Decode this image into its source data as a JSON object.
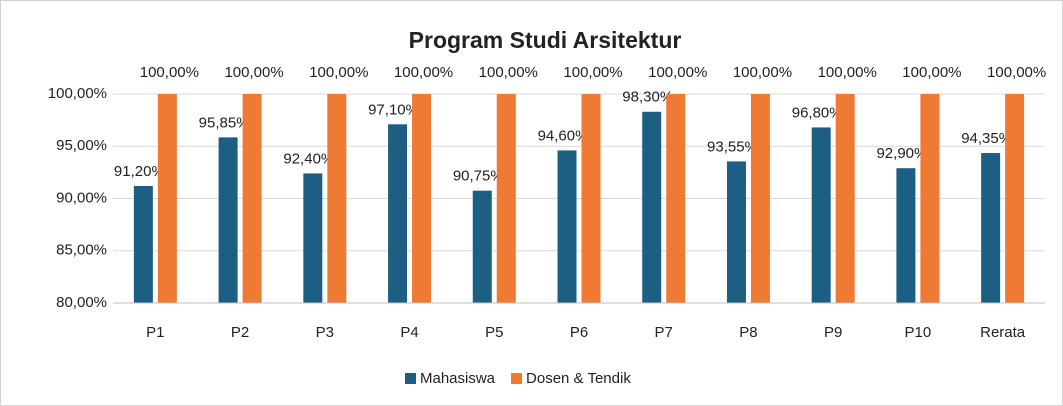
{
  "chart_data": {
    "type": "bar",
    "title": "Program Studi Arsitektur",
    "categories": [
      "P1",
      "P2",
      "P3",
      "P4",
      "P5",
      "P6",
      "P7",
      "P8",
      "P9",
      "P10",
      "Rerata"
    ],
    "series": [
      {
        "name": "Mahasiswa",
        "color": "#1c5f82",
        "values": [
          91.2,
          95.85,
          92.4,
          97.1,
          90.75,
          94.6,
          98.3,
          93.55,
          96.8,
          92.9,
          94.35
        ],
        "value_labels": [
          "91,20%",
          "95,85%",
          "92,40%",
          "97,10%",
          "90,75%",
          "94,60%",
          "98,30%",
          "93,55%",
          "96,80%",
          "92,90%",
          "94,35%"
        ]
      },
      {
        "name": "Dosen & Tendik",
        "color": "#ee7a34",
        "values": [
          100,
          100,
          100,
          100,
          100,
          100,
          100,
          100,
          100,
          100,
          100
        ],
        "value_labels": [
          "100,00%",
          "100,00%",
          "100,00%",
          "100,00%",
          "100,00%",
          "100,00%",
          "100,00%",
          "100,00%",
          "100,00%",
          "100,00%",
          "100,00%"
        ]
      }
    ],
    "ylim": [
      80,
      100
    ],
    "yticks": [
      {
        "value": 80,
        "label": "80,00%"
      },
      {
        "value": 85,
        "label": "85,00%"
      },
      {
        "value": 90,
        "label": "90,00%"
      },
      {
        "value": 95,
        "label": "95,00%"
      },
      {
        "value": 100,
        "label": "100,00%"
      }
    ],
    "grid": true,
    "legend": "bottom"
  }
}
